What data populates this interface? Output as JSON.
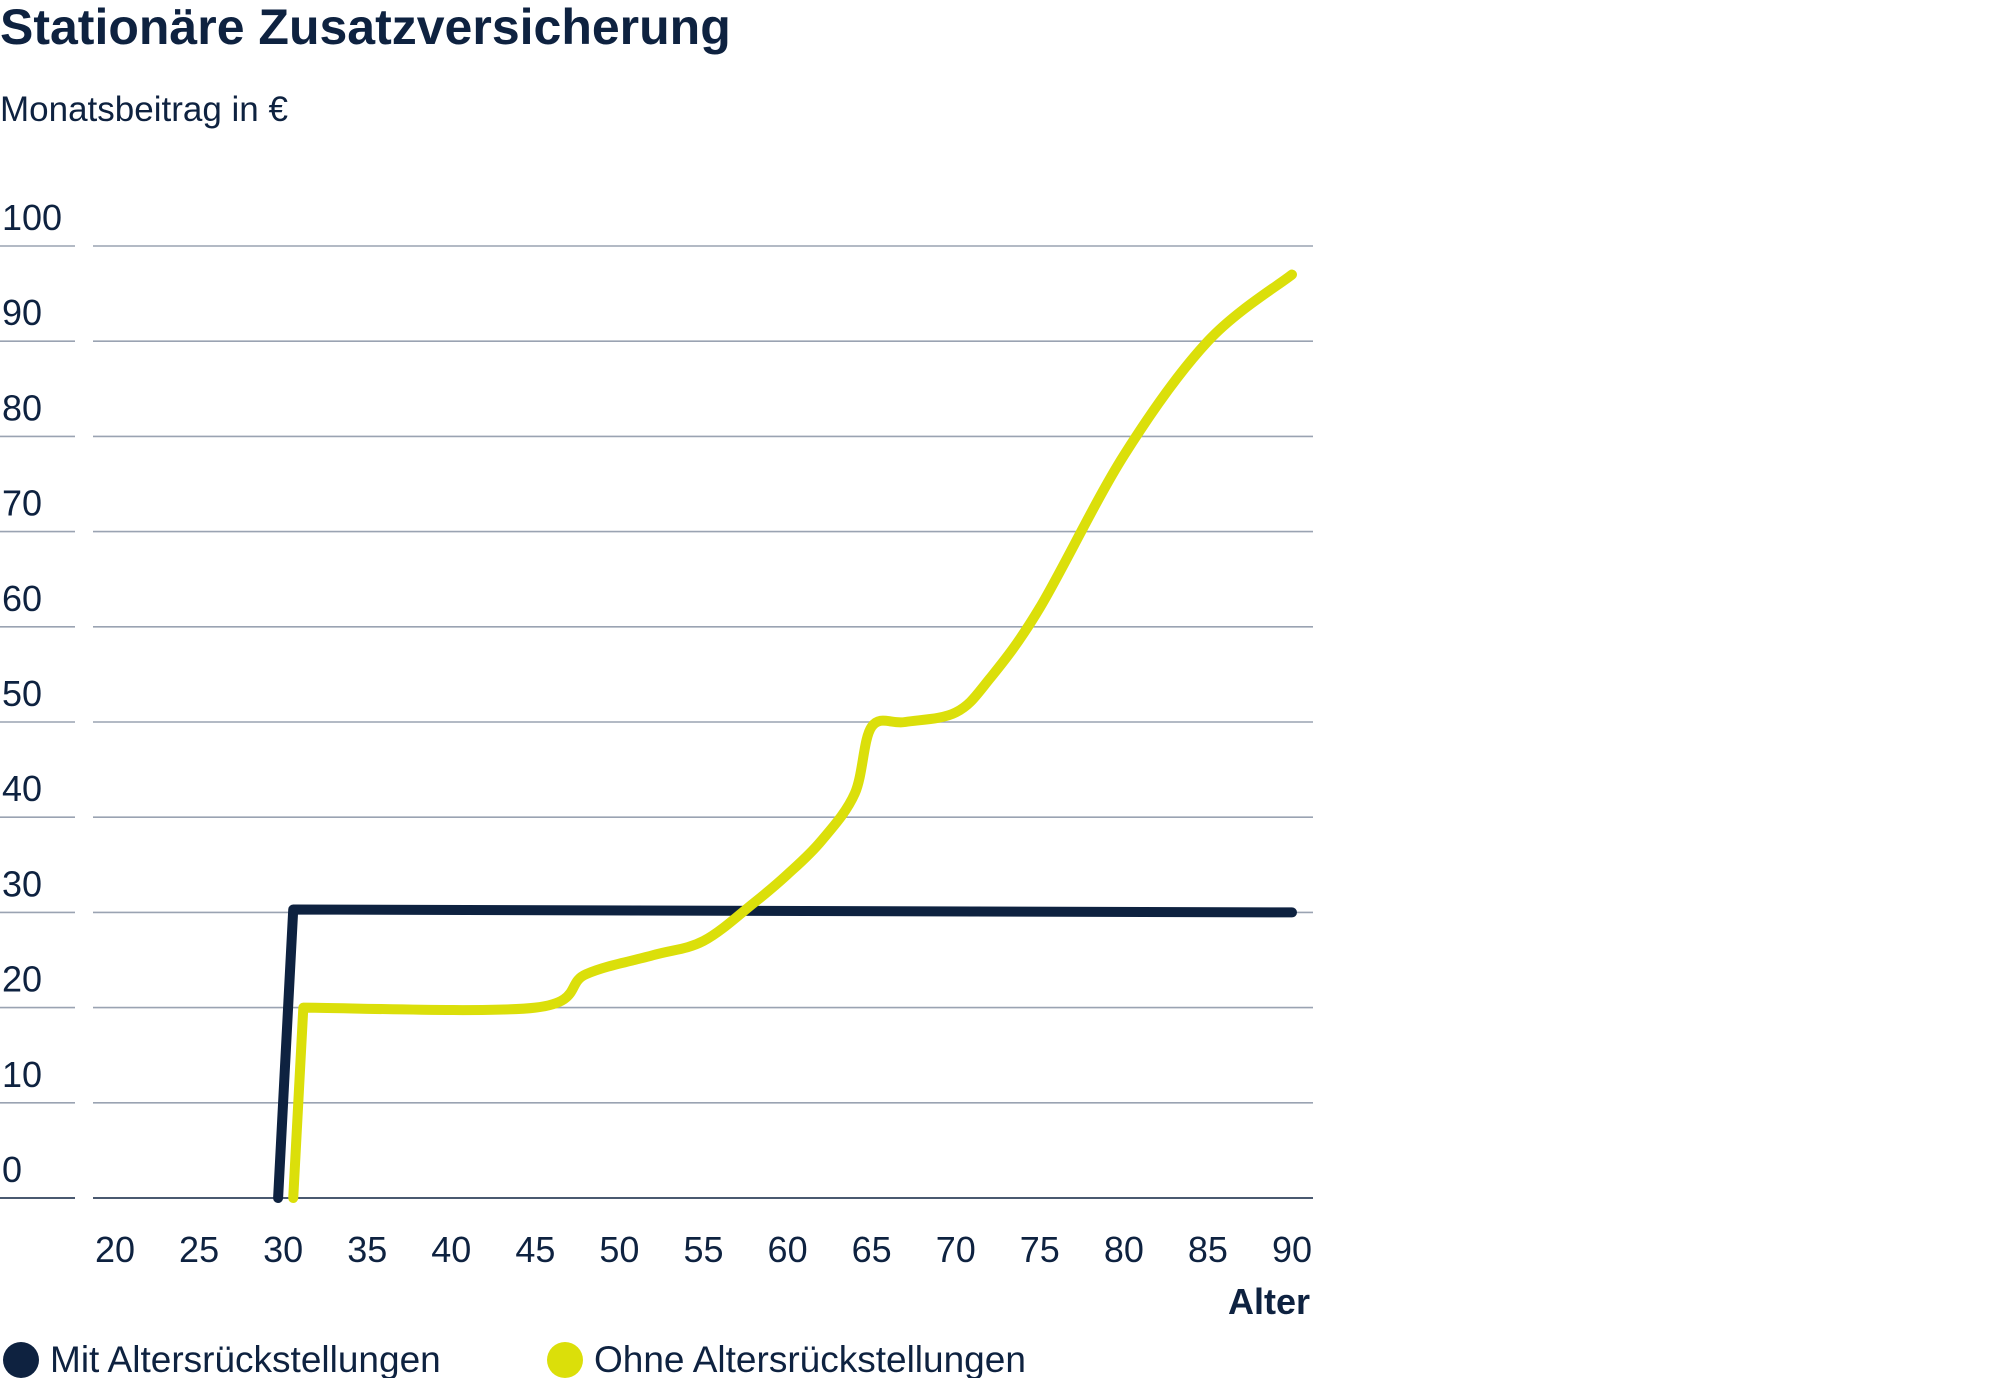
{
  "chart_data": {
    "type": "line",
    "title": "Stationäre Zusatzversicherung",
    "subtitle": "Monatsbeitrag in €",
    "xlabel": "Alter",
    "ylabel": "Monatsbeitrag in €",
    "xlim": [
      20,
      90
    ],
    "ylim": [
      0,
      100
    ],
    "x_ticks": [
      "20",
      "25",
      "30",
      "35",
      "40",
      "45",
      "50",
      "55",
      "60",
      "65",
      "70",
      "75",
      "80",
      "85",
      "90"
    ],
    "y_ticks": [
      "100",
      "90",
      "80",
      "70",
      "60",
      "50",
      "40",
      "30",
      "20",
      "10",
      "0"
    ],
    "grid": true,
    "legend_position": "bottom-left",
    "series": [
      {
        "name": "Mit Altersrückstellungen",
        "color": "#0e2240",
        "x": [
          29.7,
          30.6,
          90
        ],
        "y": [
          0,
          30.3,
          30
        ]
      },
      {
        "name": "Ohne Altersrückstellungen",
        "color": "#dbdf0a",
        "x": [
          30.6,
          31.2,
          45,
          48,
          52,
          55,
          58,
          60,
          62,
          64,
          65,
          67,
          70,
          72,
          75,
          80,
          85,
          90
        ],
        "y": [
          0,
          20,
          20,
          23.5,
          25.5,
          27,
          31,
          34,
          37.5,
          42.5,
          49.5,
          50,
          51,
          54.5,
          62,
          78,
          90,
          97
        ]
      }
    ]
  }
}
